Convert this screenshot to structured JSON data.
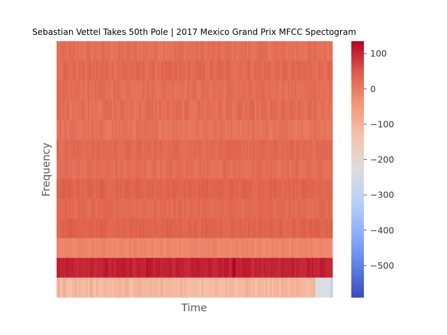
{
  "chart_data": {
    "type": "heatmap",
    "title": "Sebastian Vettel Takes 50th Pole | 2017 Mexico Grand Prix MFCC Spectogram",
    "xlabel": "Time",
    "ylabel": "Frequency",
    "colormap": "coolwarm",
    "colorbar": {
      "min": -590,
      "max": 135,
      "ticks": [
        100,
        0,
        -100,
        -200,
        -300,
        -400,
        -500
      ],
      "tick_labels": [
        "100",
        "0",
        "−100",
        "−200",
        "−300",
        "−400",
        "−500"
      ]
    },
    "time_frames": 160,
    "rows_top_to_bottom": [
      {
        "mean": 20,
        "variation": 14
      },
      {
        "mean": 30,
        "variation": 14
      },
      {
        "mean": 22,
        "variation": 12
      },
      {
        "mean": 22,
        "variation": 16
      },
      {
        "mean": 15,
        "variation": 12
      },
      {
        "mean": 30,
        "variation": 10
      },
      {
        "mean": 22,
        "variation": 12
      },
      {
        "mean": 38,
        "variation": 10
      },
      {
        "mean": 28,
        "variation": 10
      },
      {
        "mean": 38,
        "variation": 10
      },
      {
        "mean": -15,
        "variation": 10
      },
      {
        "mean": 105,
        "variation": 12
      },
      {
        "mean": -110,
        "variation": 25
      }
    ],
    "notable": [
      {
        "row": 11,
        "frames": [
          102,
          103
        ],
        "value": 135
      },
      {
        "row": 11,
        "frames": [
          52
        ],
        "value": 128
      },
      {
        "row": 12,
        "frames": [
          150,
          151,
          152,
          153,
          154,
          155,
          156,
          157,
          158
        ],
        "value": -230
      },
      {
        "row": 12,
        "frames": [
          159
        ],
        "value": -330
      }
    ]
  }
}
